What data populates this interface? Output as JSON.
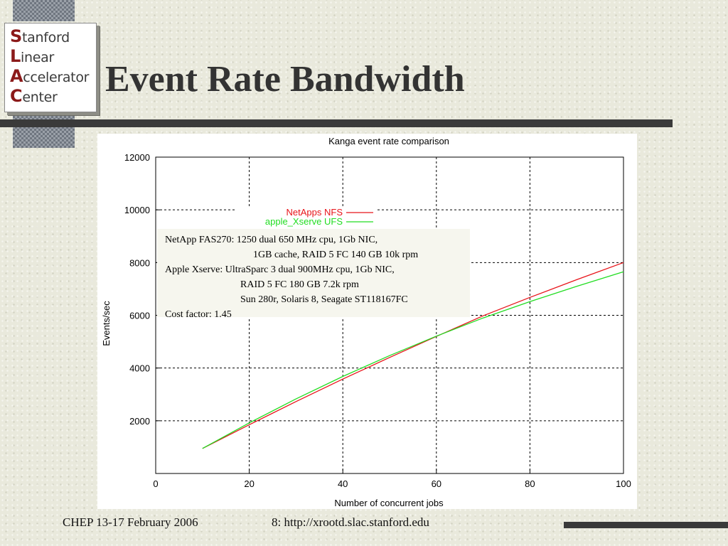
{
  "logo": {
    "lines": [
      {
        "cap": "S",
        "rest": "tanford"
      },
      {
        "cap": "L",
        "rest": "inear"
      },
      {
        "cap": "A",
        "rest": "ccelerator"
      },
      {
        "cap": "C",
        "rest": "enter"
      }
    ]
  },
  "slide": {
    "title": "Event Rate Bandwidth",
    "footer_left": "CHEP 13-17 February 2006",
    "footer_right": "8: http://xrootd.slac.stanford.edu"
  },
  "annotation": {
    "lines": [
      "NetApp FAS270: 1250 dual 650 MHz cpu, 1Gb NIC,",
      "1GB cache, RAID 5 FC 140 GB 10k rpm",
      "Apple Xserve: UltraSparc 3 dual 900MHz cpu, 1Gb NIC,",
      "RAID 5 FC 180 GB 7.2k rpm",
      "Sun 280r, Solaris 8, Seagate ST118167FC",
      "Cost factor: 1.45"
    ]
  },
  "chart_data": {
    "type": "line",
    "title": "Kanga event rate comparison",
    "xlabel": "Number of concurrent jobs",
    "ylabel": "Events/sec",
    "xlim": [
      0,
      100
    ],
    "ylim": [
      0,
      12000
    ],
    "xticks": [
      0,
      20,
      40,
      60,
      80,
      100
    ],
    "yticks": [
      2000,
      4000,
      6000,
      8000,
      10000,
      12000
    ],
    "grid": true,
    "legend_position": "top-center",
    "series": [
      {
        "name": "NetApps NFS",
        "color": "#e8141a",
        "x": [
          10,
          20,
          30,
          40,
          50,
          60,
          70,
          80,
          90,
          100
        ],
        "y": [
          950,
          1850,
          2730,
          3580,
          4400,
          5200,
          5980,
          6680,
          7350,
          8000
        ]
      },
      {
        "name": "apple_Xserve UFS",
        "color": "#22dd22",
        "x": [
          10,
          20,
          30,
          40,
          50,
          60,
          70,
          80,
          90,
          100
        ],
        "y": [
          950,
          1920,
          2830,
          3680,
          4470,
          5210,
          5900,
          6520,
          7100,
          7650
        ]
      }
    ]
  }
}
